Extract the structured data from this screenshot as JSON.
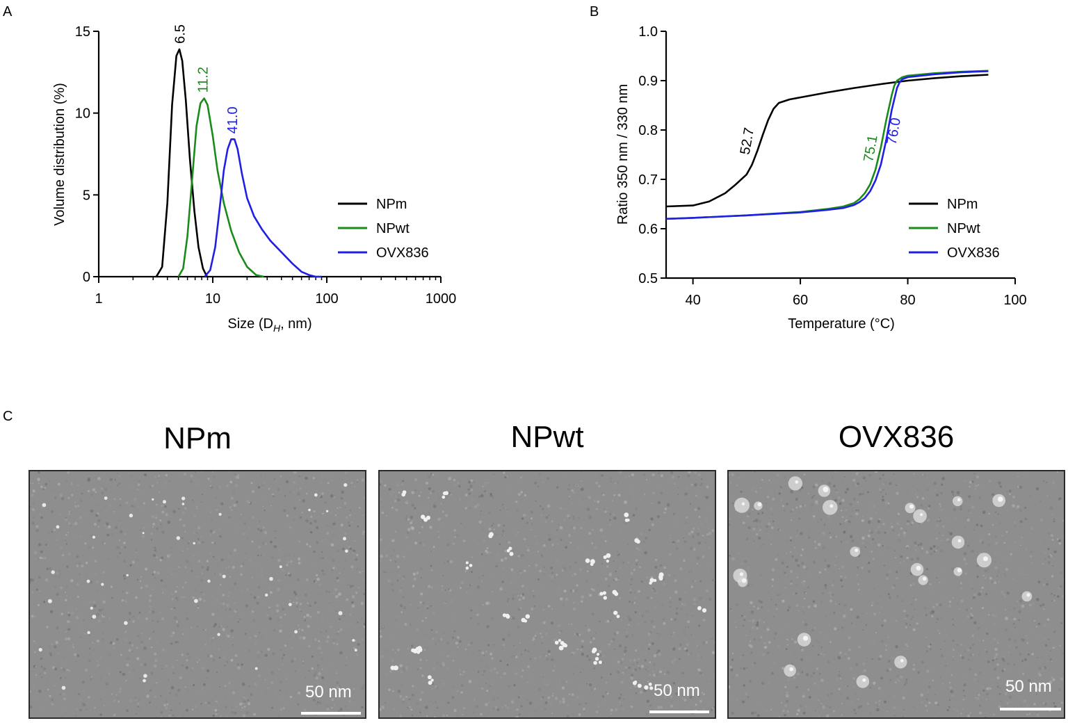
{
  "panels": {
    "a": "A",
    "b": "B",
    "c": "C"
  },
  "colors": {
    "NPm": "#000000",
    "NPwt": "#1a8a1a",
    "OVX836": "#1f1fe6"
  },
  "chart_data": [
    {
      "type": "line",
      "panel": "A",
      "xscale": "log",
      "xlabel_main": "Size (D",
      "xlabel_sub": "H",
      "xlabel_tail": ", nm)",
      "ylabel": "Volume distribution (%)",
      "xlim": [
        1,
        1000
      ],
      "ylim": [
        0,
        15
      ],
      "xticks": [
        1,
        10,
        100,
        1000
      ],
      "xtick_labels": [
        "1",
        "10",
        "100",
        "1000"
      ],
      "yticks": [
        0,
        5,
        10,
        15
      ],
      "ytick_labels": [
        "0",
        "5",
        "10",
        "15"
      ],
      "legend": [
        "NPm",
        "NPwt",
        "OVX836"
      ],
      "legend_position": "right",
      "series": [
        {
          "name": "NPm",
          "x": [
            3.2,
            3.6,
            4.0,
            4.4,
            4.8,
            5.1,
            5.4,
            5.8,
            6.3,
            6.9,
            7.5,
            8.2,
            8.9
          ],
          "y": [
            0,
            0.6,
            4.5,
            10.5,
            13.5,
            13.9,
            13.2,
            10.8,
            7.2,
            4.0,
            1.8,
            0.5,
            0
          ]
        },
        {
          "name": "NPwt",
          "x": [
            5.0,
            5.5,
            6.0,
            6.6,
            7.2,
            7.8,
            8.4,
            9.0,
            10.0,
            11.0,
            12.5,
            14.5,
            17.0,
            20.0,
            24.0,
            28.0
          ],
          "y": [
            0,
            0.5,
            2.5,
            6.0,
            9.2,
            10.6,
            10.9,
            10.5,
            8.6,
            6.5,
            4.5,
            2.8,
            1.5,
            0.6,
            0.1,
            0
          ]
        },
        {
          "name": "OVX836",
          "x": [
            8.5,
            9.5,
            10.5,
            11.5,
            12.5,
            13.5,
            14.5,
            15.5,
            16.5,
            18.0,
            20.0,
            23.0,
            27.0,
            32.0,
            40.0,
            50.0,
            60.0,
            70.0,
            80.0,
            90.0
          ],
          "y": [
            0,
            0.4,
            1.8,
            4.2,
            6.5,
            7.8,
            8.4,
            8.4,
            7.8,
            6.3,
            4.8,
            3.7,
            2.9,
            2.2,
            1.5,
            0.8,
            0.3,
            0.1,
            0,
            0
          ]
        }
      ],
      "peak_labels": [
        {
          "text": "6.5",
          "series": "NPm",
          "x": 5.2,
          "y": 13.9
        },
        {
          "text": "11.2",
          "series": "NPwt",
          "x": 8.3,
          "y": 10.9
        },
        {
          "text": "41.0",
          "series": "OVX836",
          "x": 15.0,
          "y": 8.4
        }
      ]
    },
    {
      "type": "line",
      "panel": "B",
      "xlabel": "Temperature (°C)",
      "ylabel": "Ratio 350 nm / 330 nm",
      "xlim": [
        35,
        100
      ],
      "ylim": [
        0.5,
        1.0
      ],
      "xticks": [
        40,
        60,
        80,
        100
      ],
      "xtick_labels": [
        "40",
        "60",
        "80",
        "100"
      ],
      "yticks": [
        0.5,
        0.6,
        0.7,
        0.8,
        0.9,
        1.0
      ],
      "ytick_labels": [
        "0.5",
        "0.6",
        "0.7",
        "0.8",
        "0.9",
        "1.0"
      ],
      "legend": [
        "NPm",
        "NPwt",
        "OVX836"
      ],
      "legend_position": "bottom-right",
      "series": [
        {
          "name": "NPm",
          "x": [
            35,
            40,
            43,
            46,
            48,
            50,
            51,
            52,
            53,
            54,
            55,
            56,
            58,
            60,
            65,
            70,
            75,
            80,
            85,
            90,
            95
          ],
          "y": [
            0.645,
            0.647,
            0.655,
            0.672,
            0.69,
            0.71,
            0.73,
            0.758,
            0.79,
            0.82,
            0.843,
            0.855,
            0.862,
            0.866,
            0.876,
            0.885,
            0.893,
            0.9,
            0.905,
            0.909,
            0.912
          ]
        },
        {
          "name": "NPwt",
          "x": [
            35,
            40,
            50,
            60,
            65,
            68,
            70,
            71,
            72,
            73,
            74,
            75,
            76,
            77,
            77.5,
            78,
            79,
            80,
            85,
            90,
            95
          ],
          "y": [
            0.62,
            0.622,
            0.627,
            0.634,
            0.64,
            0.645,
            0.652,
            0.66,
            0.672,
            0.69,
            0.72,
            0.765,
            0.82,
            0.87,
            0.89,
            0.9,
            0.907,
            0.91,
            0.915,
            0.918,
            0.92
          ]
        },
        {
          "name": "OVX836",
          "x": [
            35,
            40,
            50,
            60,
            65,
            68,
            70,
            71,
            72,
            73,
            74,
            75,
            76,
            77,
            78,
            78.5,
            79,
            80,
            85,
            90,
            95
          ],
          "y": [
            0.62,
            0.622,
            0.627,
            0.633,
            0.638,
            0.642,
            0.648,
            0.654,
            0.662,
            0.676,
            0.698,
            0.73,
            0.78,
            0.84,
            0.885,
            0.897,
            0.903,
            0.907,
            0.913,
            0.917,
            0.919
          ]
        }
      ],
      "annotations": [
        {
          "text": "52.7",
          "series": "NPm",
          "x": 51.5,
          "y": 0.78
        },
        {
          "text": "75.1",
          "series": "NPwt",
          "x": 74.5,
          "y": 0.765
        },
        {
          "text": "76.0",
          "series": "OVX836",
          "x": 78.8,
          "y": 0.8
        }
      ]
    }
  ],
  "tem": {
    "panels": [
      {
        "title": "NPm",
        "scale_label": "50 nm"
      },
      {
        "title": "NPwt",
        "scale_label": "50 nm"
      },
      {
        "title": "OVX836",
        "scale_label": "50 nm"
      }
    ]
  }
}
